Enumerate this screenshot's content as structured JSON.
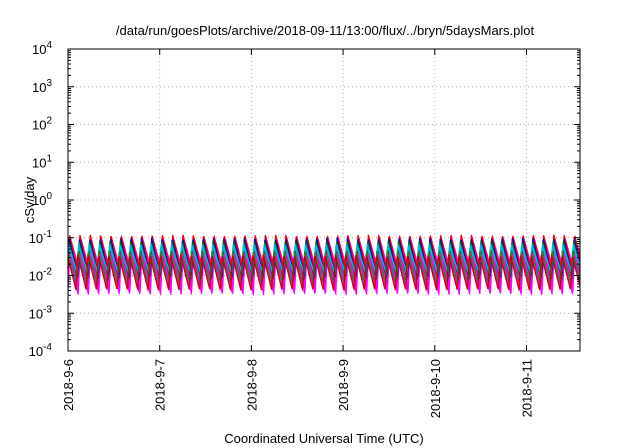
{
  "chart_data": {
    "type": "line",
    "title": "/data/run/goesPlots/archive/2018-09-11/13:00/flux/../bryn/5daysMars.plot",
    "xlabel": "Coordinated Universal Time (UTC)",
    "ylabel": "cSv/day",
    "yscale": "log",
    "ylim": [
      0.0001,
      10000
    ],
    "xlim": [
      "2018-9-6",
      "2018-9-11 14:00"
    ],
    "grid": true,
    "y_ticks": [
      {
        "value": 0.0001,
        "mant": "10",
        "exp": "-4"
      },
      {
        "value": 0.001,
        "mant": "10",
        "exp": "-3"
      },
      {
        "value": 0.01,
        "mant": "10",
        "exp": "-2"
      },
      {
        "value": 0.1,
        "mant": "10",
        "exp": "-1"
      },
      {
        "value": 1,
        "mant": "10",
        "exp": "0"
      },
      {
        "value": 10,
        "mant": "10",
        "exp": "1"
      },
      {
        "value": 100,
        "mant": "10",
        "exp": "2"
      },
      {
        "value": 1000,
        "mant": "10",
        "exp": "3"
      },
      {
        "value": 10000,
        "mant": "10",
        "exp": "4"
      }
    ],
    "x_ticks": [
      "2018-9-6",
      "2018-9-7",
      "2018-9-8",
      "2018-9-9",
      "2018-9-10",
      "2018-9-11"
    ],
    "envelope": {
      "color": "#ff00ff",
      "upper": [
        0.03,
        0.028,
        0.028,
        0.03
      ],
      "lower": [
        0.003,
        0.0035,
        0.0035,
        0.003
      ]
    },
    "cycle": {
      "description_period_hours": 2.7,
      "peaks_per_day": 8.9,
      "upper_peak": 0.12,
      "upper_trough": 0.018,
      "lower_peak": 0.025,
      "lower_trough": 0.003
    },
    "series": [
      {
        "color": "#ff0000",
        "peak": 0.12,
        "trough": 0.012
      },
      {
        "color": "#0000cc",
        "peak": 0.1,
        "trough": 0.009
      },
      {
        "color": "#006400",
        "peak": 0.085,
        "trough": 0.008
      },
      {
        "color": "#00aaff",
        "peak": 0.07,
        "trough": 0.011
      },
      {
        "color": "#00bfbf",
        "peak": 0.06,
        "trough": 0.013
      },
      {
        "color": "#228b22",
        "peak": 0.045,
        "trough": 0.006
      },
      {
        "color": "#cc0000",
        "peak": 0.035,
        "trough": 0.004
      }
    ]
  }
}
